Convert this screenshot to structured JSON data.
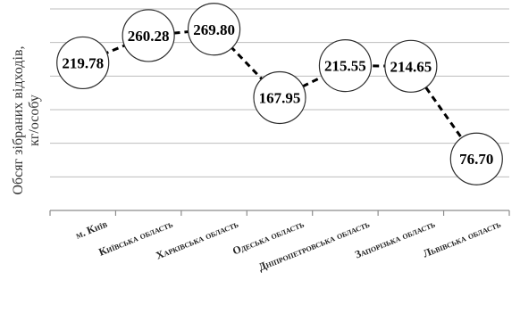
{
  "chart_data": {
    "type": "line",
    "ylabel": "Обсяг зібраних відходів, кг/особу",
    "categories": [
      "м. Київ",
      "Київська область",
      "Харківська область",
      "Одеська область",
      "Дніпропетровська область",
      "Запорізька область",
      "Львівська область"
    ],
    "values": [
      219.78,
      260.28,
      269.8,
      167.95,
      215.55,
      214.65,
      76.7
    ],
    "value_labels": [
      "219.78",
      "260.28",
      "269.80",
      "167.95",
      "215.55",
      "214.65",
      "76.70"
    ],
    "ylim": [
      0,
      300
    ],
    "grid": true,
    "line_style": "dashed",
    "marker": "circle-with-label",
    "colors": {
      "line": "#000000",
      "grid": "#bdbdbd",
      "marker_fill": "#ffffff",
      "text": "#000000"
    }
  }
}
